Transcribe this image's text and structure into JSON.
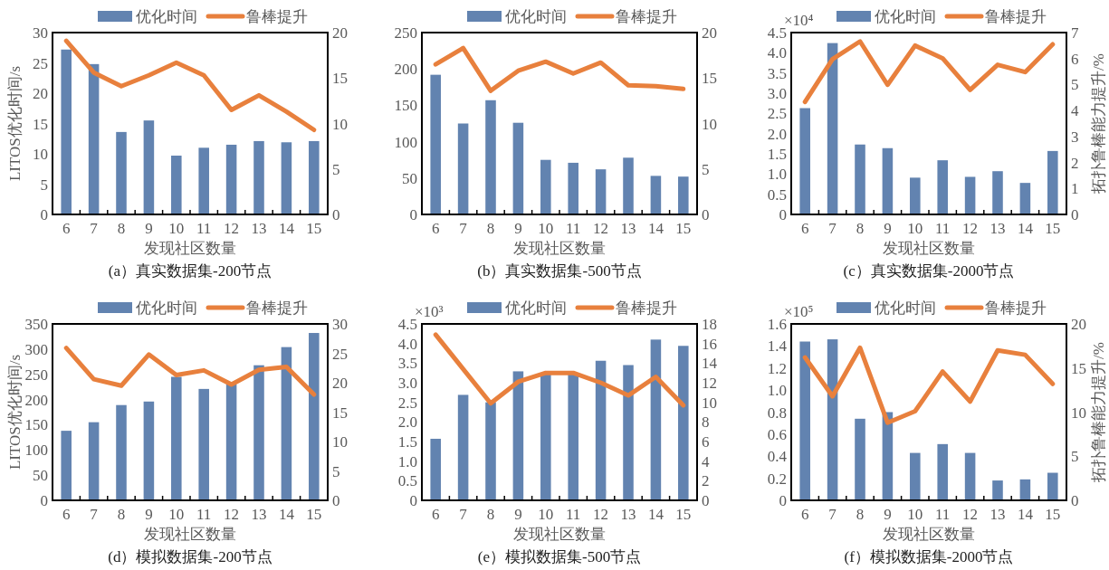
{
  "chart_data": [
    {
      "type": "bar",
      "title": "(a）真实数据集-200节点",
      "xlabel": "发现社区数量",
      "ylabel": "LITOS优化时间/s",
      "legend": "top",
      "categories": [
        "6",
        "7",
        "8",
        "9",
        "10",
        "11",
        "12",
        "13",
        "14",
        "15"
      ],
      "series": [
        {
          "name": "优化时间",
          "color": "#6283b0",
          "values": [
            27.2,
            24.8,
            13.6,
            15.5,
            9.7,
            11.0,
            11.5,
            12.1,
            11.9,
            12.1
          ]
        },
        {
          "name": "鲁棒提升",
          "type": "line",
          "axis": "y2",
          "color": "#e8803d",
          "values": [
            19.1,
            15.6,
            14.1,
            15.3,
            16.7,
            15.3,
            11.5,
            13.1,
            11.3,
            9.3
          ]
        }
      ],
      "ylim": [
        0,
        30
      ],
      "yticks": [
        0,
        5,
        10,
        15,
        20,
        25,
        30
      ],
      "y2lim": [
        0,
        20
      ],
      "y2ticks": [
        0,
        5,
        10,
        15,
        20
      ]
    },
    {
      "type": "bar",
      "title": "(b）真实数据集-500节点",
      "xlabel": "发现社区数量",
      "legend": "top",
      "categories": [
        "6",
        "7",
        "8",
        "9",
        "10",
        "11",
        "12",
        "13",
        "14",
        "15"
      ],
      "series": [
        {
          "name": "优化时间",
          "color": "#6283b0",
          "values": [
            192,
            125,
            157,
            126,
            75,
            71,
            62,
            78,
            53,
            52
          ]
        },
        {
          "name": "鲁棒提升",
          "type": "line",
          "axis": "y2",
          "color": "#e8803d",
          "values": [
            16.5,
            18.3,
            13.6,
            15.8,
            16.8,
            15.5,
            16.7,
            14.2,
            14.1,
            13.8
          ]
        }
      ],
      "ylim": [
        0,
        250
      ],
      "yticks": [
        0,
        50,
        100,
        150,
        200,
        250
      ],
      "y2lim": [
        0,
        20
      ],
      "y2ticks": [
        0,
        5,
        10,
        15,
        20
      ]
    },
    {
      "type": "bar",
      "title": "(c）真实数据集-2000节点",
      "xlabel": "发现社区数量",
      "y2label": "拓扑鲁棒能力提升/%",
      "legend": "top",
      "annotations": [
        "×10⁴"
      ],
      "categories": [
        "6",
        "7",
        "8",
        "9",
        "10",
        "11",
        "12",
        "13",
        "14",
        "15"
      ],
      "series": [
        {
          "name": "优化时间",
          "color": "#6283b0",
          "values": [
            2.63,
            4.24,
            1.73,
            1.64,
            0.91,
            1.34,
            0.93,
            1.07,
            0.78,
            1.57
          ]
        },
        {
          "name": "鲁棒提升",
          "type": "line",
          "axis": "y2",
          "color": "#e8803d",
          "values": [
            4.33,
            5.98,
            6.66,
            4.99,
            6.5,
            6.01,
            4.79,
            5.76,
            5.48,
            6.55
          ]
        }
      ],
      "ylim": [
        0,
        4.5
      ],
      "yticks": [
        0,
        {
          "value": 0.5,
          "label": "0.5"
        },
        {
          "value": 1,
          "label": "1.0"
        },
        {
          "value": 1.5,
          "label": "1.5"
        },
        {
          "value": 2,
          "label": "2.0"
        },
        {
          "value": 2.5,
          "label": "2.5"
        },
        {
          "value": 3,
          "label": "3.0"
        },
        {
          "value": 3.5,
          "label": "3.5"
        },
        {
          "value": 4,
          "label": "4.0"
        },
        {
          "value": 4.5,
          "label": "4.5"
        }
      ],
      "y2lim": [
        0,
        7
      ],
      "y2ticks": [
        0,
        1,
        2,
        3,
        4,
        5,
        6,
        7
      ]
    },
    {
      "type": "bar",
      "title": "(d）模拟数据集-200节点",
      "xlabel": "发现社区数量",
      "ylabel": "LITOS优化时间/s",
      "legend": "top",
      "categories": [
        "6",
        "7",
        "8",
        "9",
        "10",
        "11",
        "12",
        "13",
        "14",
        "15"
      ],
      "series": [
        {
          "name": "优化时间",
          "color": "#6283b0",
          "values": [
            138,
            155,
            189,
            196,
            245,
            221,
            230,
            268,
            304,
            332
          ]
        },
        {
          "name": "鲁棒提升",
          "type": "line",
          "axis": "y2",
          "color": "#e8803d",
          "values": [
            25.9,
            20.6,
            19.5,
            24.8,
            21.3,
            22.1,
            19.7,
            22.2,
            22.7,
            18.0
          ]
        }
      ],
      "ylim": [
        0,
        350
      ],
      "yticks": [
        0,
        50,
        100,
        150,
        200,
        250,
        300,
        350
      ],
      "y2lim": [
        0,
        30
      ],
      "y2ticks": [
        0,
        5,
        10,
        15,
        20,
        25,
        30
      ]
    },
    {
      "type": "bar",
      "title": "(e）模拟数据集-500节点",
      "xlabel": "发现社区数量",
      "legend": "top",
      "annotations": [
        "×10³"
      ],
      "categories": [
        "6",
        "7",
        "8",
        "9",
        "10",
        "11",
        "12",
        "13",
        "14",
        "15"
      ],
      "series": [
        {
          "name": "优化时间",
          "color": "#6283b0",
          "values": [
            1.57,
            2.69,
            2.5,
            3.29,
            3.25,
            3.25,
            3.56,
            3.45,
            4.1,
            3.94
          ]
        },
        {
          "name": "鲁棒提升",
          "type": "line",
          "axis": "y2",
          "color": "#e8803d",
          "values": [
            16.9,
            13.4,
            9.9,
            12.1,
            13.0,
            13.0,
            12.0,
            10.7,
            12.6,
            9.7
          ]
        }
      ],
      "ylim": [
        0,
        4.5
      ],
      "yticks": [
        0,
        {
          "value": 0.5,
          "label": "0.5"
        },
        {
          "value": 1,
          "label": "1.0"
        },
        {
          "value": 1.5,
          "label": "1.5"
        },
        {
          "value": 2,
          "label": "2.0"
        },
        {
          "value": 2.5,
          "label": "2.5"
        },
        {
          "value": 3,
          "label": "3.0"
        },
        {
          "value": 3.5,
          "label": "3.5"
        },
        {
          "value": 4,
          "label": "4.0"
        },
        {
          "value": 4.5,
          "label": "4.5"
        }
      ],
      "y2lim": [
        0,
        18
      ],
      "y2ticks": [
        0,
        2,
        4,
        6,
        8,
        10,
        12,
        14,
        16,
        18
      ]
    },
    {
      "type": "bar",
      "title": "(f）模拟数据集-2000节点",
      "xlabel": "发现社区数量",
      "y2label": "拓扑鲁棒能力提升/%",
      "legend": "top",
      "annotations": [
        "×10⁵"
      ],
      "categories": [
        "6",
        "7",
        "8",
        "9",
        "10",
        "11",
        "12",
        "13",
        "14",
        "15"
      ],
      "series": [
        {
          "name": "优化时间",
          "color": "#6283b0",
          "values": [
            1.44,
            1.46,
            0.74,
            0.8,
            0.43,
            0.51,
            0.43,
            0.18,
            0.19,
            0.25
          ]
        },
        {
          "name": "鲁棒提升",
          "type": "line",
          "axis": "y2",
          "color": "#e8803d",
          "values": [
            16.2,
            11.8,
            17.3,
            8.8,
            10.1,
            14.6,
            11.2,
            17.0,
            16.5,
            13.2
          ]
        }
      ],
      "ylim": [
        0,
        1.6
      ],
      "yticks": [
        0,
        {
          "value": 0.2,
          "label": "0.2"
        },
        {
          "value": 0.4,
          "label": "0.4"
        },
        {
          "value": 0.6,
          "label": "0.6"
        },
        {
          "value": 0.8,
          "label": "0.8"
        },
        {
          "value": 1,
          "label": "1.0"
        },
        {
          "value": 1.2,
          "label": "1.2"
        },
        {
          "value": 1.4,
          "label": "1.4"
        },
        {
          "value": 1.6,
          "label": "1.6"
        }
      ],
      "y2lim": [
        0,
        20
      ],
      "y2ticks": [
        0,
        5,
        10,
        15,
        20
      ]
    }
  ]
}
